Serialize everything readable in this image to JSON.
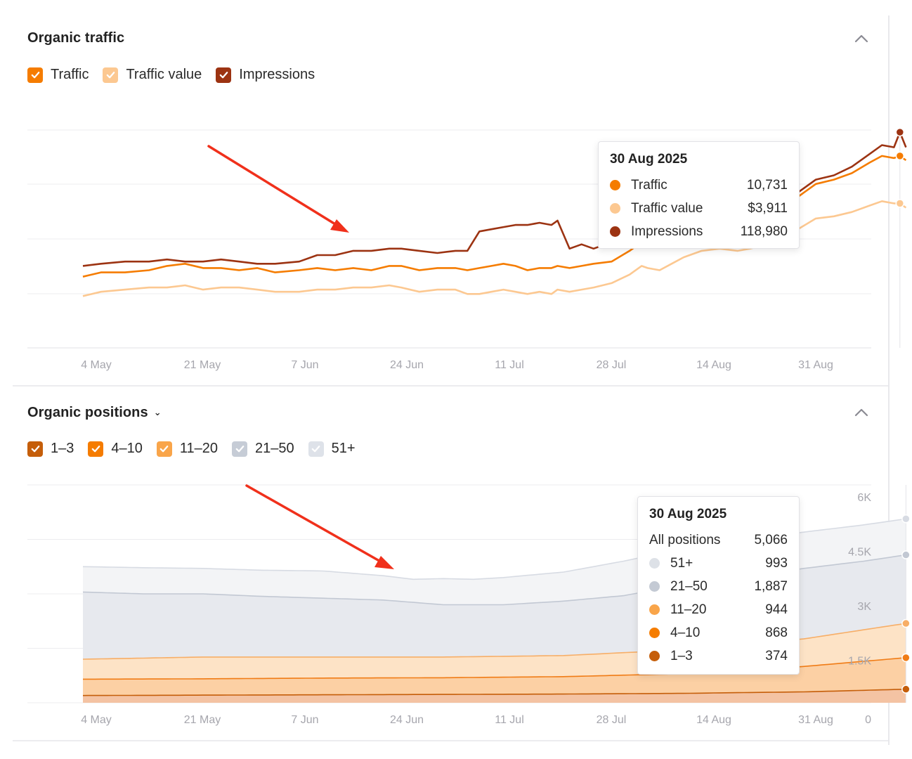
{
  "organic_traffic": {
    "title": "Organic traffic",
    "legend": [
      {
        "label": "Traffic",
        "color": "#f57c00",
        "checked": true
      },
      {
        "label": "Traffic value",
        "color": "#fcc891",
        "checked": true
      },
      {
        "label": "Impressions",
        "color": "#9c3312",
        "checked": true
      }
    ],
    "tooltip": {
      "date": "30 Aug 2025",
      "rows": [
        {
          "label": "Traffic",
          "value": "10,731",
          "color": "#f57c00"
        },
        {
          "label": "Traffic value",
          "value": "$3,911",
          "color": "#fcc891"
        },
        {
          "label": "Impressions",
          "value": "118,980",
          "color": "#9c3312"
        }
      ]
    }
  },
  "organic_positions": {
    "title": "Organic positions",
    "legend": [
      {
        "label": "1–3",
        "color": "#c55e0a",
        "checked": true
      },
      {
        "label": "4–10",
        "color": "#f57c00",
        "checked": true
      },
      {
        "label": "11–20",
        "color": "#f9a54a",
        "checked": true
      },
      {
        "label": "21–50",
        "color": "#c6ccd6",
        "checked": true
      },
      {
        "label": "51+",
        "color": "#dee2e9",
        "checked": true
      }
    ],
    "tooltip": {
      "date": "30 Aug 2025",
      "total_label": "All positions",
      "total_value": "5,066",
      "rows": [
        {
          "label": "51+",
          "value": "993",
          "color": "#dde1e7"
        },
        {
          "label": "21–50",
          "value": "1,887",
          "color": "#c4cad4"
        },
        {
          "label": "11–20",
          "value": "944",
          "color": "#f9a54a"
        },
        {
          "label": "4–10",
          "value": "868",
          "color": "#f57c00"
        },
        {
          "label": "1–3",
          "value": "374",
          "color": "#c55e0a"
        }
      ]
    }
  },
  "chart_data": [
    {
      "type": "line",
      "x_ticks": [
        "4 May",
        "21 May",
        "7 Jun",
        "24 Jun",
        "11 Jul",
        "28 Jul",
        "14 Aug",
        "31 Aug"
      ],
      "x_range": [
        "25 Apr 2025",
        "31 Aug 2025"
      ],
      "grid": true,
      "y_range_relative": [
        0,
        1
      ],
      "series": [
        {
          "name": "Impressions",
          "color": "#9c3312",
          "points": [
            [
              0,
              0.38
            ],
            [
              3,
              0.39
            ],
            [
              7,
              0.4
            ],
            [
              11,
              0.4
            ],
            [
              14,
              0.41
            ],
            [
              17,
              0.4
            ],
            [
              20,
              0.4
            ],
            [
              23,
              0.41
            ],
            [
              26,
              0.4
            ],
            [
              29,
              0.39
            ],
            [
              32,
              0.39
            ],
            [
              36,
              0.4
            ],
            [
              39,
              0.43
            ],
            [
              42,
              0.43
            ],
            [
              45,
              0.45
            ],
            [
              48,
              0.45
            ],
            [
              51,
              0.46
            ],
            [
              53,
              0.46
            ],
            [
              56,
              0.45
            ],
            [
              59,
              0.44
            ],
            [
              62,
              0.45
            ],
            [
              64,
              0.45
            ],
            [
              66,
              0.54
            ],
            [
              68,
              0.55
            ],
            [
              70,
              0.56
            ],
            [
              72,
              0.57
            ],
            [
              74,
              0.57
            ],
            [
              76,
              0.58
            ],
            [
              78,
              0.57
            ],
            [
              79,
              0.59
            ],
            [
              81,
              0.46
            ],
            [
              83,
              0.48
            ],
            [
              85,
              0.46
            ],
            [
              88,
              0.49
            ],
            [
              91,
              0.5
            ],
            [
              93,
              0.57
            ],
            [
              94,
              0.49
            ],
            [
              96,
              0.52
            ],
            [
              98,
              0.54
            ],
            [
              100,
              0.55
            ],
            [
              103,
              0.58
            ],
            [
              106,
              0.6
            ],
            [
              109,
              0.58
            ],
            [
              111,
              0.59
            ],
            [
              114,
              0.61
            ],
            [
              116,
              0.65
            ],
            [
              119,
              0.72
            ],
            [
              122,
              0.78
            ],
            [
              125,
              0.8
            ],
            [
              128,
              0.84
            ],
            [
              131,
              0.9
            ],
            [
              133,
              0.94
            ],
            [
              135,
              0.93
            ],
            [
              136,
              1.0
            ],
            [
              137,
              0.93
            ]
          ]
        },
        {
          "name": "Traffic",
          "color": "#f57c00",
          "points": [
            [
              0,
              0.33
            ],
            [
              3,
              0.35
            ],
            [
              7,
              0.35
            ],
            [
              11,
              0.36
            ],
            [
              14,
              0.38
            ],
            [
              17,
              0.39
            ],
            [
              20,
              0.37
            ],
            [
              23,
              0.37
            ],
            [
              26,
              0.36
            ],
            [
              29,
              0.37
            ],
            [
              32,
              0.35
            ],
            [
              36,
              0.36
            ],
            [
              39,
              0.37
            ],
            [
              42,
              0.36
            ],
            [
              45,
              0.37
            ],
            [
              48,
              0.36
            ],
            [
              51,
              0.38
            ],
            [
              53,
              0.38
            ],
            [
              56,
              0.36
            ],
            [
              59,
              0.37
            ],
            [
              62,
              0.37
            ],
            [
              64,
              0.36
            ],
            [
              66,
              0.37
            ],
            [
              68,
              0.38
            ],
            [
              70,
              0.39
            ],
            [
              72,
              0.38
            ],
            [
              74,
              0.36
            ],
            [
              76,
              0.37
            ],
            [
              78,
              0.37
            ],
            [
              79,
              0.38
            ],
            [
              81,
              0.37
            ],
            [
              83,
              0.38
            ],
            [
              85,
              0.39
            ],
            [
              88,
              0.4
            ],
            [
              91,
              0.45
            ],
            [
              93,
              0.49
            ],
            [
              94,
              0.49
            ],
            [
              96,
              0.47
            ],
            [
              98,
              0.5
            ],
            [
              100,
              0.52
            ],
            [
              103,
              0.55
            ],
            [
              106,
              0.57
            ],
            [
              109,
              0.56
            ],
            [
              111,
              0.57
            ],
            [
              114,
              0.6
            ],
            [
              116,
              0.64
            ],
            [
              119,
              0.7
            ],
            [
              122,
              0.76
            ],
            [
              125,
              0.78
            ],
            [
              128,
              0.81
            ],
            [
              131,
              0.86
            ],
            [
              133,
              0.89
            ],
            [
              135,
              0.88
            ],
            [
              136,
              0.89
            ],
            [
              137,
              0.87
            ]
          ]
        },
        {
          "name": "Traffic value",
          "color": "#fcc891",
          "points": [
            [
              0,
              0.24
            ],
            [
              3,
              0.26
            ],
            [
              7,
              0.27
            ],
            [
              11,
              0.28
            ],
            [
              14,
              0.28
            ],
            [
              17,
              0.29
            ],
            [
              20,
              0.27
            ],
            [
              23,
              0.28
            ],
            [
              26,
              0.28
            ],
            [
              29,
              0.27
            ],
            [
              32,
              0.26
            ],
            [
              36,
              0.26
            ],
            [
              39,
              0.27
            ],
            [
              42,
              0.27
            ],
            [
              45,
              0.28
            ],
            [
              48,
              0.28
            ],
            [
              51,
              0.29
            ],
            [
              53,
              0.28
            ],
            [
              56,
              0.26
            ],
            [
              59,
              0.27
            ],
            [
              62,
              0.27
            ],
            [
              64,
              0.25
            ],
            [
              66,
              0.25
            ],
            [
              68,
              0.26
            ],
            [
              70,
              0.27
            ],
            [
              72,
              0.26
            ],
            [
              74,
              0.25
            ],
            [
              76,
              0.26
            ],
            [
              78,
              0.25
            ],
            [
              79,
              0.27
            ],
            [
              81,
              0.26
            ],
            [
              83,
              0.27
            ],
            [
              85,
              0.28
            ],
            [
              88,
              0.3
            ],
            [
              91,
              0.34
            ],
            [
              93,
              0.38
            ],
            [
              94,
              0.37
            ],
            [
              96,
              0.36
            ],
            [
              98,
              0.39
            ],
            [
              100,
              0.42
            ],
            [
              103,
              0.45
            ],
            [
              106,
              0.46
            ],
            [
              109,
              0.45
            ],
            [
              111,
              0.46
            ],
            [
              114,
              0.48
            ],
            [
              116,
              0.5
            ],
            [
              119,
              0.55
            ],
            [
              122,
              0.6
            ],
            [
              125,
              0.61
            ],
            [
              128,
              0.63
            ],
            [
              131,
              0.66
            ],
            [
              133,
              0.68
            ],
            [
              135,
              0.67
            ],
            [
              136,
              0.67
            ],
            [
              137,
              0.65
            ]
          ]
        }
      ]
    },
    {
      "type": "area",
      "stacked": true,
      "x_ticks": [
        "4 May",
        "21 May",
        "7 Jun",
        "24 Jun",
        "11 Jul",
        "28 Jul",
        "14 Aug",
        "31 Aug"
      ],
      "x_range": [
        "25 Apr 2025",
        "31 Aug 2025"
      ],
      "y_ticks": [
        "0",
        "1.5K",
        "3K",
        "4.5K",
        "6K"
      ],
      "ylim": [
        0,
        6000
      ],
      "grid": true,
      "series": [
        {
          "name": "1–3",
          "color": "#c55e0a",
          "points": [
            [
              0,
              200
            ],
            [
              20,
              210
            ],
            [
              40,
              220
            ],
            [
              60,
              230
            ],
            [
              80,
              240
            ],
            [
              100,
              260
            ],
            [
              120,
              300
            ],
            [
              137,
              374
            ]
          ]
        },
        {
          "name": "4–10",
          "color": "#f57c00",
          "points": [
            [
              0,
              650
            ],
            [
              20,
              660
            ],
            [
              40,
              680
            ],
            [
              60,
              690
            ],
            [
              80,
              720
            ],
            [
              100,
              800
            ],
            [
              120,
              1000
            ],
            [
              137,
              1242
            ]
          ]
        },
        {
          "name": "11–20",
          "color": "#f9a54a",
          "points": [
            [
              0,
              1200
            ],
            [
              20,
              1260
            ],
            [
              40,
              1260
            ],
            [
              60,
              1260
            ],
            [
              80,
              1300
            ],
            [
              100,
              1460
            ],
            [
              120,
              1760
            ],
            [
              137,
              2186
            ]
          ]
        },
        {
          "name": "21–50",
          "color": "#c4cad4",
          "points": [
            [
              0,
              3050
            ],
            [
              10,
              3000
            ],
            [
              20,
              3000
            ],
            [
              30,
              2930
            ],
            [
              40,
              2880
            ],
            [
              50,
              2830
            ],
            [
              60,
              2700
            ],
            [
              70,
              2700
            ],
            [
              80,
              2800
            ],
            [
              90,
              2950
            ],
            [
              100,
              3250
            ],
            [
              110,
              3450
            ],
            [
              120,
              3700
            ],
            [
              130,
              3900
            ],
            [
              137,
              4073
            ]
          ]
        },
        {
          "name": "51+",
          "color": "#dde1e7",
          "points": [
            [
              0,
              3750
            ],
            [
              10,
              3720
            ],
            [
              20,
              3700
            ],
            [
              30,
              3650
            ],
            [
              40,
              3630
            ],
            [
              50,
              3500
            ],
            [
              55,
              3400
            ],
            [
              60,
              3420
            ],
            [
              65,
              3400
            ],
            [
              70,
              3450
            ],
            [
              80,
              3600
            ],
            [
              90,
              3900
            ],
            [
              100,
              4250
            ],
            [
              110,
              4500
            ],
            [
              120,
              4700
            ],
            [
              130,
              4900
            ],
            [
              137,
              5066
            ]
          ]
        }
      ]
    }
  ]
}
